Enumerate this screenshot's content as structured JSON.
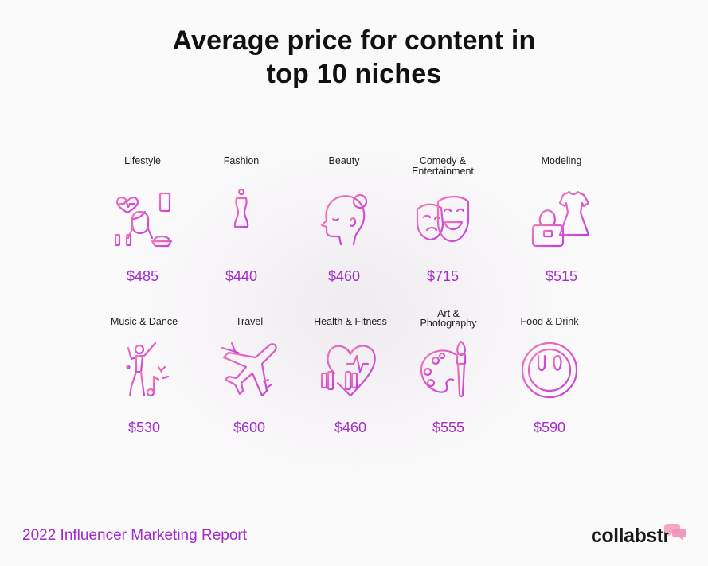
{
  "title": [
    "Average price for content in",
    "top 10 niches"
  ],
  "colors": {
    "accent": "#a32bc8",
    "icon_gradient_start": "#f27ab0",
    "icon_gradient_end": "#c13ee0",
    "logo_bubble": "#f6a7c7"
  },
  "chart_data": {
    "type": "table",
    "title": "Average price for content in top 10 niches",
    "currency": "$",
    "rows": [
      {
        "niche": "Lifestyle",
        "price": 485,
        "price_label": "$485",
        "icon": "lifestyle-icon"
      },
      {
        "niche": "Fashion",
        "price": 440,
        "price_label": "$440",
        "icon": "mannequin-icon"
      },
      {
        "niche": "Beauty",
        "price": 460,
        "price_label": "$460",
        "icon": "woman-profile-icon"
      },
      {
        "niche": "Comedy & Entertainment",
        "label_lines": [
          "Comedy &",
          "Entertainment"
        ],
        "price": 715,
        "price_label": "$715",
        "icon": "theater-masks-icon"
      },
      {
        "niche": "Modeling",
        "price": 515,
        "price_label": "$515",
        "icon": "dress-handbag-icon"
      },
      {
        "niche": "Music & Dance",
        "price": 530,
        "price_label": "$530",
        "icon": "dancer-icon"
      },
      {
        "niche": "Travel",
        "price": 600,
        "price_label": "$600",
        "icon": "airplane-icon"
      },
      {
        "niche": "Health & Fitness",
        "price": 460,
        "price_label": "$460",
        "icon": "heart-dumbbell-icon"
      },
      {
        "niche": "Art & Photography",
        "label_lines": [
          "Art &",
          "Photography"
        ],
        "price": 555,
        "price_label": "$555",
        "icon": "palette-brush-icon"
      },
      {
        "niche": "Food & Drink",
        "price": 590,
        "price_label": "$590",
        "icon": "plate-fork-spoon-icon"
      }
    ]
  },
  "footer": {
    "report_label": "2022 Influencer Marketing Report",
    "logo_text": "collabstr"
  }
}
